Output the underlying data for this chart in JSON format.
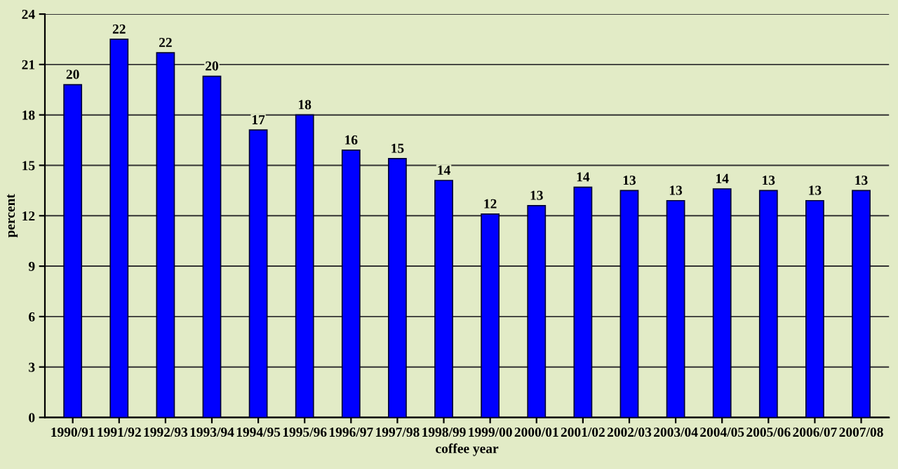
{
  "chart_data": {
    "type": "bar",
    "xlabel": "coffee year",
    "ylabel": "percent",
    "categories": [
      "1990/91",
      "1991/92",
      "1992/93",
      "1993/94",
      "1994/95",
      "1995/96",
      "1996/97",
      "1997/98",
      "1998/99",
      "1999/00",
      "2000/01",
      "2001/02",
      "2002/03",
      "2003/04",
      "2004/05",
      "2005/06",
      "2006/07",
      "2007/08"
    ],
    "values": [
      19.8,
      22.5,
      21.7,
      20.3,
      17.1,
      18.0,
      15.9,
      15.4,
      14.1,
      12.1,
      12.6,
      13.7,
      13.5,
      12.9,
      13.6,
      13.5,
      12.9,
      13.5
    ],
    "value_labels": [
      "20",
      "22",
      "22",
      "20",
      "17",
      "18",
      "16",
      "15",
      "14",
      "12",
      "13",
      "14",
      "13",
      "13",
      "14",
      "13",
      "13",
      "13"
    ],
    "color": "#0000ff",
    "ylim": [
      0,
      24
    ],
    "yticks": [
      0,
      3,
      6,
      9,
      12,
      15,
      18,
      21,
      24
    ],
    "grid": "y"
  }
}
